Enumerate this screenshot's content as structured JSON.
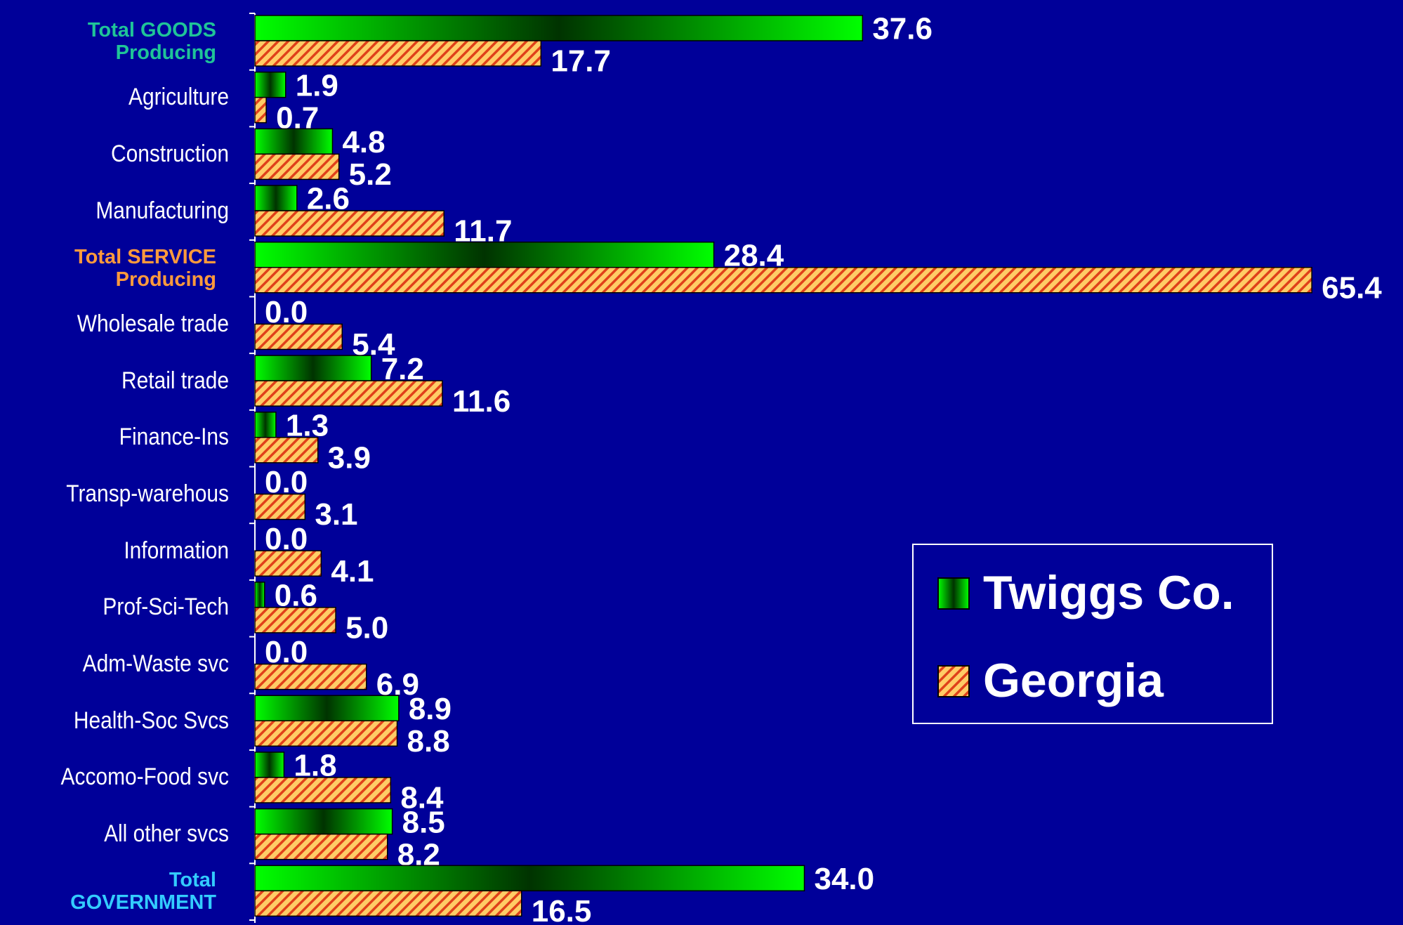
{
  "chart_data": {
    "type": "hbar",
    "categories": [
      "Total GOODS Producing",
      "Agriculture",
      "Construction",
      "Manufacturing",
      "Total SERVICE Producing",
      "Wholesale trade",
      "Retail trade",
      "Finance-Ins",
      "Transp-warehous",
      "Information",
      "Prof-Sci-Tech",
      "Adm-Waste svc",
      "Health-Soc Svcs",
      "Accomo-Food svc",
      "All other svcs",
      "Total GOVERNMENT"
    ],
    "category_colors": [
      "#1fc498",
      "#ffffff",
      "#ffffff",
      "#ffffff",
      "#ff9a3c",
      "#ffffff",
      "#ffffff",
      "#ffffff",
      "#ffffff",
      "#ffffff",
      "#ffffff",
      "#ffffff",
      "#ffffff",
      "#ffffff",
      "#ffffff",
      "#33ccff"
    ],
    "series": [
      {
        "name": "Twiggs Co.",
        "color": "#00ff00",
        "values": [
          37.6,
          1.9,
          4.8,
          2.6,
          28.4,
          0,
          7.2,
          1.3,
          0,
          0,
          0.6,
          0,
          8.9,
          1.8,
          8.5,
          34
        ],
        "value_labels": [
          "37.6",
          "1.9",
          "4.8",
          "2.6",
          "28.4",
          "0.0",
          "7.2",
          "1.3",
          "0.0",
          "0.0",
          "0.6",
          "0.0",
          "8.9",
          "1.8",
          "8.5",
          "34.0"
        ]
      },
      {
        "name": "Georgia",
        "color": "#ffcc66",
        "values": [
          17.7,
          0.7,
          5.2,
          11.7,
          65.4,
          5.4,
          11.6,
          3.9,
          3.1,
          4.1,
          5,
          6.9,
          8.8,
          8.4,
          8.2,
          16.5
        ],
        "value_labels": [
          "17.7",
          "0.7",
          "5.2",
          "11.7",
          "65.4",
          "5.4",
          "11.6",
          "3.9",
          "3.1",
          "4.1",
          "5.0",
          "6.9",
          "8.8",
          "8.4",
          "8.2",
          "16.5"
        ]
      }
    ],
    "xlim": [
      0,
      70
    ]
  }
}
